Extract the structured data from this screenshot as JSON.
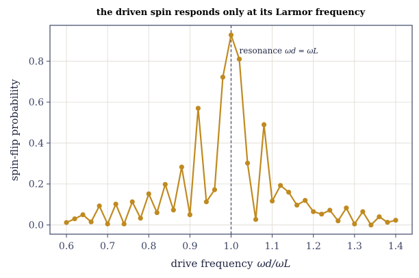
{
  "chart_data": {
    "type": "line",
    "title": "the driven spin responds only at its Larmor frequency",
    "xlabel": "drive frequency",
    "xlabel_math": "ωd/ωL",
    "ylabel": "spin-flip probability",
    "xlim": [
      0.56,
      1.44
    ],
    "ylim": [
      -0.045,
      0.975
    ],
    "xticks": [
      0.6,
      0.7,
      0.8,
      0.9,
      1.0,
      1.1,
      1.2,
      1.3,
      1.4
    ],
    "xtick_labels": [
      "0.6",
      "0.7",
      "0.8",
      "0.9",
      "1.0",
      "1.1",
      "1.2",
      "1.3",
      "1.4"
    ],
    "yticks": [
      0.0,
      0.2,
      0.4,
      0.6,
      0.8
    ],
    "ytick_labels": [
      "0.0",
      "0.2",
      "0.4",
      "0.6",
      "0.8"
    ],
    "grid": true,
    "line_color": "#c08a20",
    "frame_color": "#3d4566",
    "resonance": {
      "x": 1.0,
      "label": "resonance",
      "label_math": "ωd = ωL",
      "color": "#3d4566"
    },
    "series": [
      {
        "x": [
          0.6,
          0.62,
          0.64,
          0.66,
          0.68,
          0.7,
          0.72,
          0.74,
          0.76,
          0.78,
          0.8,
          0.82,
          0.84,
          0.86,
          0.88,
          0.9,
          0.92,
          0.94,
          0.96,
          0.98,
          1.0,
          1.02,
          1.04,
          1.06,
          1.08,
          1.1,
          1.12,
          1.14,
          1.16,
          1.18,
          1.2,
          1.22,
          1.24,
          1.26,
          1.28,
          1.3,
          1.32,
          1.34,
          1.36,
          1.38,
          1.4
        ],
        "y": [
          0.012,
          0.03,
          0.05,
          0.015,
          0.093,
          0.005,
          0.102,
          0.005,
          0.113,
          0.033,
          0.152,
          0.06,
          0.198,
          0.073,
          0.283,
          0.05,
          0.57,
          0.113,
          0.172,
          0.722,
          0.928,
          0.81,
          0.302,
          0.027,
          0.49,
          0.117,
          0.193,
          0.16,
          0.097,
          0.12,
          0.065,
          0.053,
          0.072,
          0.02,
          0.083,
          0.005,
          0.065,
          0.0,
          0.04,
          0.013,
          0.023
        ]
      }
    ]
  }
}
